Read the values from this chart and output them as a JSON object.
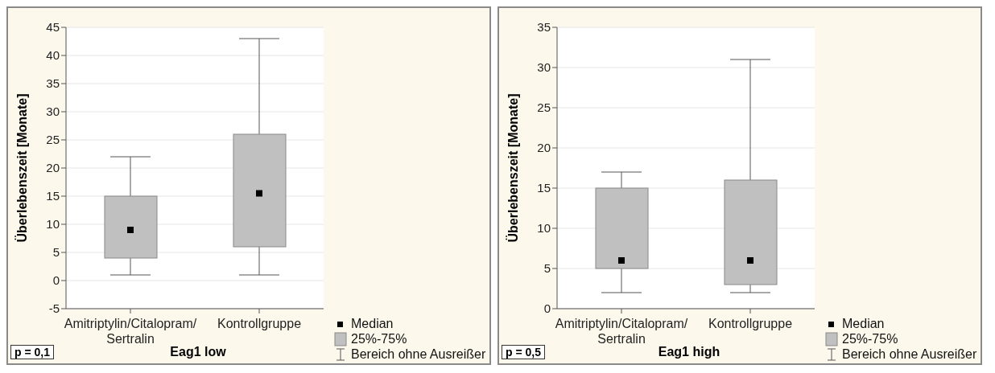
{
  "chart_data": [
    {
      "type": "box",
      "xlabel": "Eag1 low",
      "ylabel": "Überlebenszeit [Monate]",
      "categories": [
        "Amitriptylin/Citalopram/ Sertralin",
        "Kontrollgruppe"
      ],
      "series": [
        {
          "color": "#c0c0c0",
          "boxes": [
            {
              "low": 1,
              "q1": 4,
              "median": 9,
              "q3": 15,
              "high": 22
            },
            {
              "low": 1,
              "q1": 6,
              "median": 15.5,
              "q3": 26,
              "high": 43
            }
          ]
        }
      ],
      "ylim": [
        -5,
        45
      ],
      "yticks": [
        -5,
        0,
        5,
        10,
        15,
        20,
        25,
        30,
        35,
        40,
        45
      ],
      "grid": "y",
      "annotations": [
        "p = 0,1",
        "Median",
        "25%-75%",
        "Bereich ohne Ausreißer"
      ]
    },
    {
      "type": "box",
      "xlabel": "Eag1 high",
      "ylabel": "Überlebenszeit [Monate]",
      "categories": [
        "Amitriptylin/Citalopram/ Sertralin",
        "Kontrollgruppe"
      ],
      "series": [
        {
          "color": "#c0c0c0",
          "boxes": [
            {
              "low": 2,
              "q1": 5,
              "median": 6,
              "q3": 15,
              "high": 17
            },
            {
              "low": 2,
              "q1": 3,
              "median": 6,
              "q3": 16,
              "high": 31
            }
          ]
        }
      ],
      "ylim": [
        0,
        35
      ],
      "yticks": [
        0,
        5,
        10,
        15,
        20,
        25,
        30,
        35
      ],
      "grid": "y",
      "annotations": [
        "p = 0,5",
        "Median",
        "25%-75%",
        "Bereich ohne Ausreißer"
      ]
    }
  ]
}
